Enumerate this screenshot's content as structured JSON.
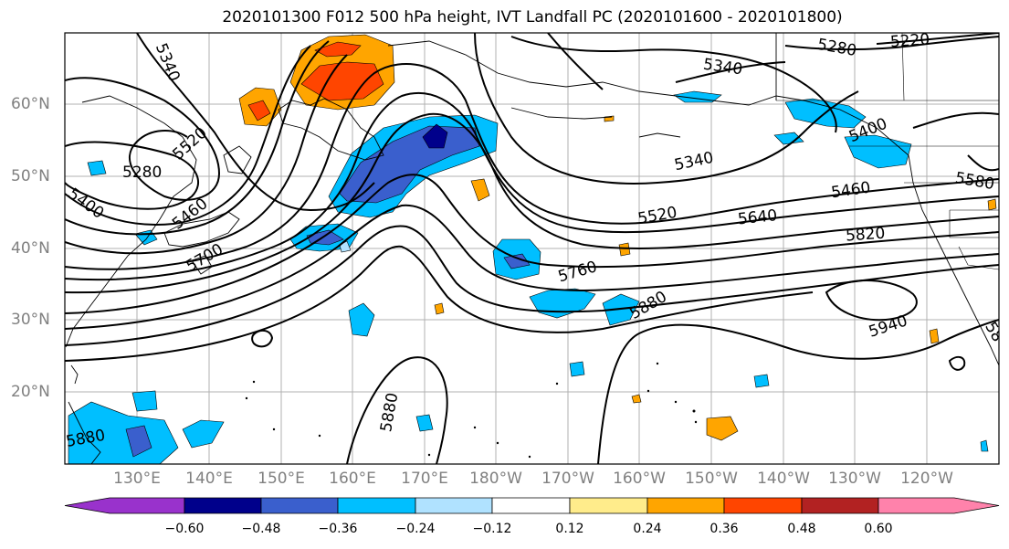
{
  "title": "2020101300 F012 500 hPa height, IVT Landfall PC (2020101600 - 2020101800)",
  "map": {
    "lat_labels": [
      "60°N",
      "50°N",
      "40°N",
      "30°N",
      "20°N"
    ],
    "lon_labels": [
      "130°E",
      "140°E",
      "150°E",
      "160°E",
      "170°E",
      "180°W",
      "170°W",
      "160°W",
      "150°W",
      "140°W",
      "130°W",
      "120°W"
    ],
    "contour_labels": [
      "5340",
      "5280",
      "5220",
      "5340",
      "5340",
      "5400",
      "5520",
      "5280",
      "5460",
      "5400",
      "5700",
      "5460",
      "5580",
      "5520",
      "5640",
      "5820",
      "5760",
      "5880",
      "5940",
      "5880",
      "5880",
      "58"
    ],
    "contour_color": "#000000",
    "grid_color": "#b0b0b0",
    "coastline_color": "#000000"
  },
  "colorbar": {
    "ticks": [
      "−0.60",
      "−0.48",
      "−0.36",
      "−0.24",
      "−0.12",
      "0.12",
      "0.24",
      "0.36",
      "0.48",
      "0.60"
    ],
    "colors": [
      "#9932cc",
      "#00008b",
      "#3a5fcd",
      "#00bfff",
      "#b0e2ff",
      "#ffffff",
      "#ffec8b",
      "#ffa500",
      "#ff4500",
      "#b22222",
      "#ff82ab"
    ]
  }
}
